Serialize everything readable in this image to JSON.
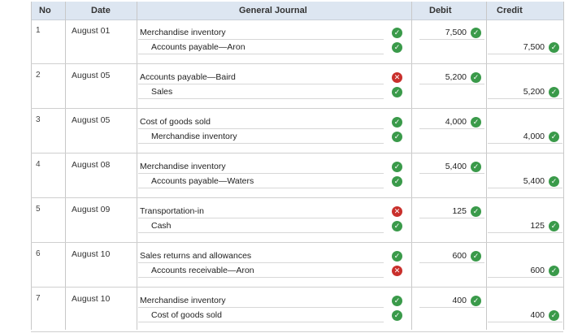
{
  "headers": {
    "no": "No",
    "date": "Date",
    "journal": "General Journal",
    "debit": "Debit",
    "credit": "Credit"
  },
  "icons": {
    "correct": "checkmark-circle-icon",
    "incorrect": "x-circle-icon"
  },
  "colors": {
    "correct": "#3a9a4a",
    "incorrect": "#c9302c",
    "header_bg": "#dde6f1"
  },
  "entries": [
    {
      "no": "1",
      "date": "August 01",
      "debit_account": "Merchandise inventory",
      "credit_account": "Accounts payable—Aron",
      "debit": "7,500",
      "credit": "7,500",
      "mark1": "correct",
      "mark2": "correct"
    },
    {
      "no": "2",
      "date": "August 05",
      "debit_account": "Accounts payable—Baird",
      "credit_account": "Sales",
      "debit": "5,200",
      "credit": "5,200",
      "mark1": "incorrect",
      "mark2": "correct"
    },
    {
      "no": "3",
      "date": "August 05",
      "debit_account": "Cost of goods sold",
      "credit_account": "Merchandise inventory",
      "debit": "4,000",
      "credit": "4,000",
      "mark1": "correct",
      "mark2": "correct"
    },
    {
      "no": "4",
      "date": "August 08",
      "debit_account": "Merchandise inventory",
      "credit_account": "Accounts payable—Waters",
      "debit": "5,400",
      "credit": "5,400",
      "mark1": "correct",
      "mark2": "correct"
    },
    {
      "no": "5",
      "date": "August 09",
      "debit_account": "Transportation-in",
      "credit_account": "Cash",
      "debit": "125",
      "credit": "125",
      "mark1": "incorrect",
      "mark2": "correct"
    },
    {
      "no": "6",
      "date": "August 10",
      "debit_account": "Sales returns and allowances",
      "credit_account": "Accounts receivable—Aron",
      "debit": "600",
      "credit": "600",
      "mark1": "correct",
      "mark2": "incorrect"
    },
    {
      "no": "7",
      "date": "August 10",
      "debit_account": "Merchandise inventory",
      "credit_account": "Cost of goods sold",
      "debit": "400",
      "credit": "400",
      "mark1": "correct",
      "mark2": "correct"
    }
  ]
}
